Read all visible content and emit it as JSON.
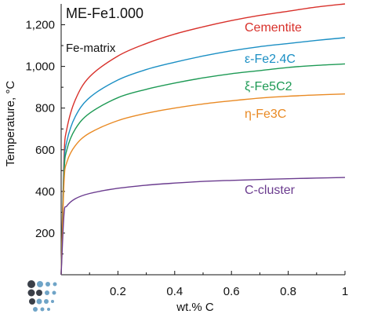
{
  "chart_data": {
    "type": "line",
    "title": "ME-Fe1.000",
    "annotation": "Fe-matrix",
    "xlabel": "wt.% C",
    "ylabel": "Temperature, °C",
    "xlim": [
      0,
      1
    ],
    "ylim": [
      0,
      1300
    ],
    "x_ticks": [
      "0.2",
      "0.4",
      "0.6",
      "0.8",
      "1"
    ],
    "y_ticks": [
      "200",
      "400",
      "600",
      "800",
      "1,000",
      "1,200"
    ],
    "grid": false,
    "series": [
      {
        "name": "Cementite",
        "color": "#d8312b",
        "x": [
          0.0,
          0.01,
          0.02,
          0.05,
          0.1,
          0.2,
          0.3,
          0.4,
          0.5,
          0.6,
          0.7,
          0.8,
          0.9,
          1.0
        ],
        "y": [
          0,
          560,
          700,
          840,
          950,
          1050,
          1110,
          1155,
          1190,
          1220,
          1245,
          1265,
          1285,
          1300
        ]
      },
      {
        "name": "ε-Fe2.4C",
        "color": "#1b8fc4",
        "x": [
          0.0,
          0.01,
          0.02,
          0.05,
          0.1,
          0.2,
          0.3,
          0.4,
          0.5,
          0.6,
          0.7,
          0.8,
          0.9,
          1.0
        ],
        "y": [
          0,
          510,
          640,
          760,
          850,
          935,
          985,
          1020,
          1050,
          1075,
          1095,
          1110,
          1125,
          1138
        ]
      },
      {
        "name": "ξ-Fe5C2",
        "color": "#1e9a55",
        "x": [
          0.0,
          0.01,
          0.02,
          0.05,
          0.1,
          0.2,
          0.3,
          0.4,
          0.5,
          0.6,
          0.7,
          0.8,
          0.9,
          1.0
        ],
        "y": [
          0,
          480,
          600,
          700,
          775,
          850,
          890,
          920,
          945,
          965,
          980,
          995,
          1005,
          1012
        ]
      },
      {
        "name": "η-Fe3C",
        "color": "#e98a24",
        "x": [
          0.0,
          0.01,
          0.02,
          0.05,
          0.1,
          0.2,
          0.3,
          0.4,
          0.5,
          0.6,
          0.7,
          0.8,
          0.9,
          1.0
        ],
        "y": [
          0,
          440,
          540,
          620,
          680,
          740,
          775,
          800,
          820,
          835,
          848,
          857,
          863,
          868
        ]
      },
      {
        "name": "C-cluster",
        "color": "#6b3c8f",
        "x": [
          0.0,
          0.01,
          0.02,
          0.05,
          0.1,
          0.2,
          0.3,
          0.4,
          0.5,
          0.6,
          0.7,
          0.8,
          0.9,
          1.0
        ],
        "y": [
          0,
          290,
          330,
          365,
          390,
          415,
          430,
          440,
          448,
          453,
          457,
          461,
          464,
          467
        ]
      }
    ]
  },
  "logo": {
    "name": "company-logo",
    "colors": [
      "#3a3f48",
      "#6fa4c7"
    ]
  }
}
